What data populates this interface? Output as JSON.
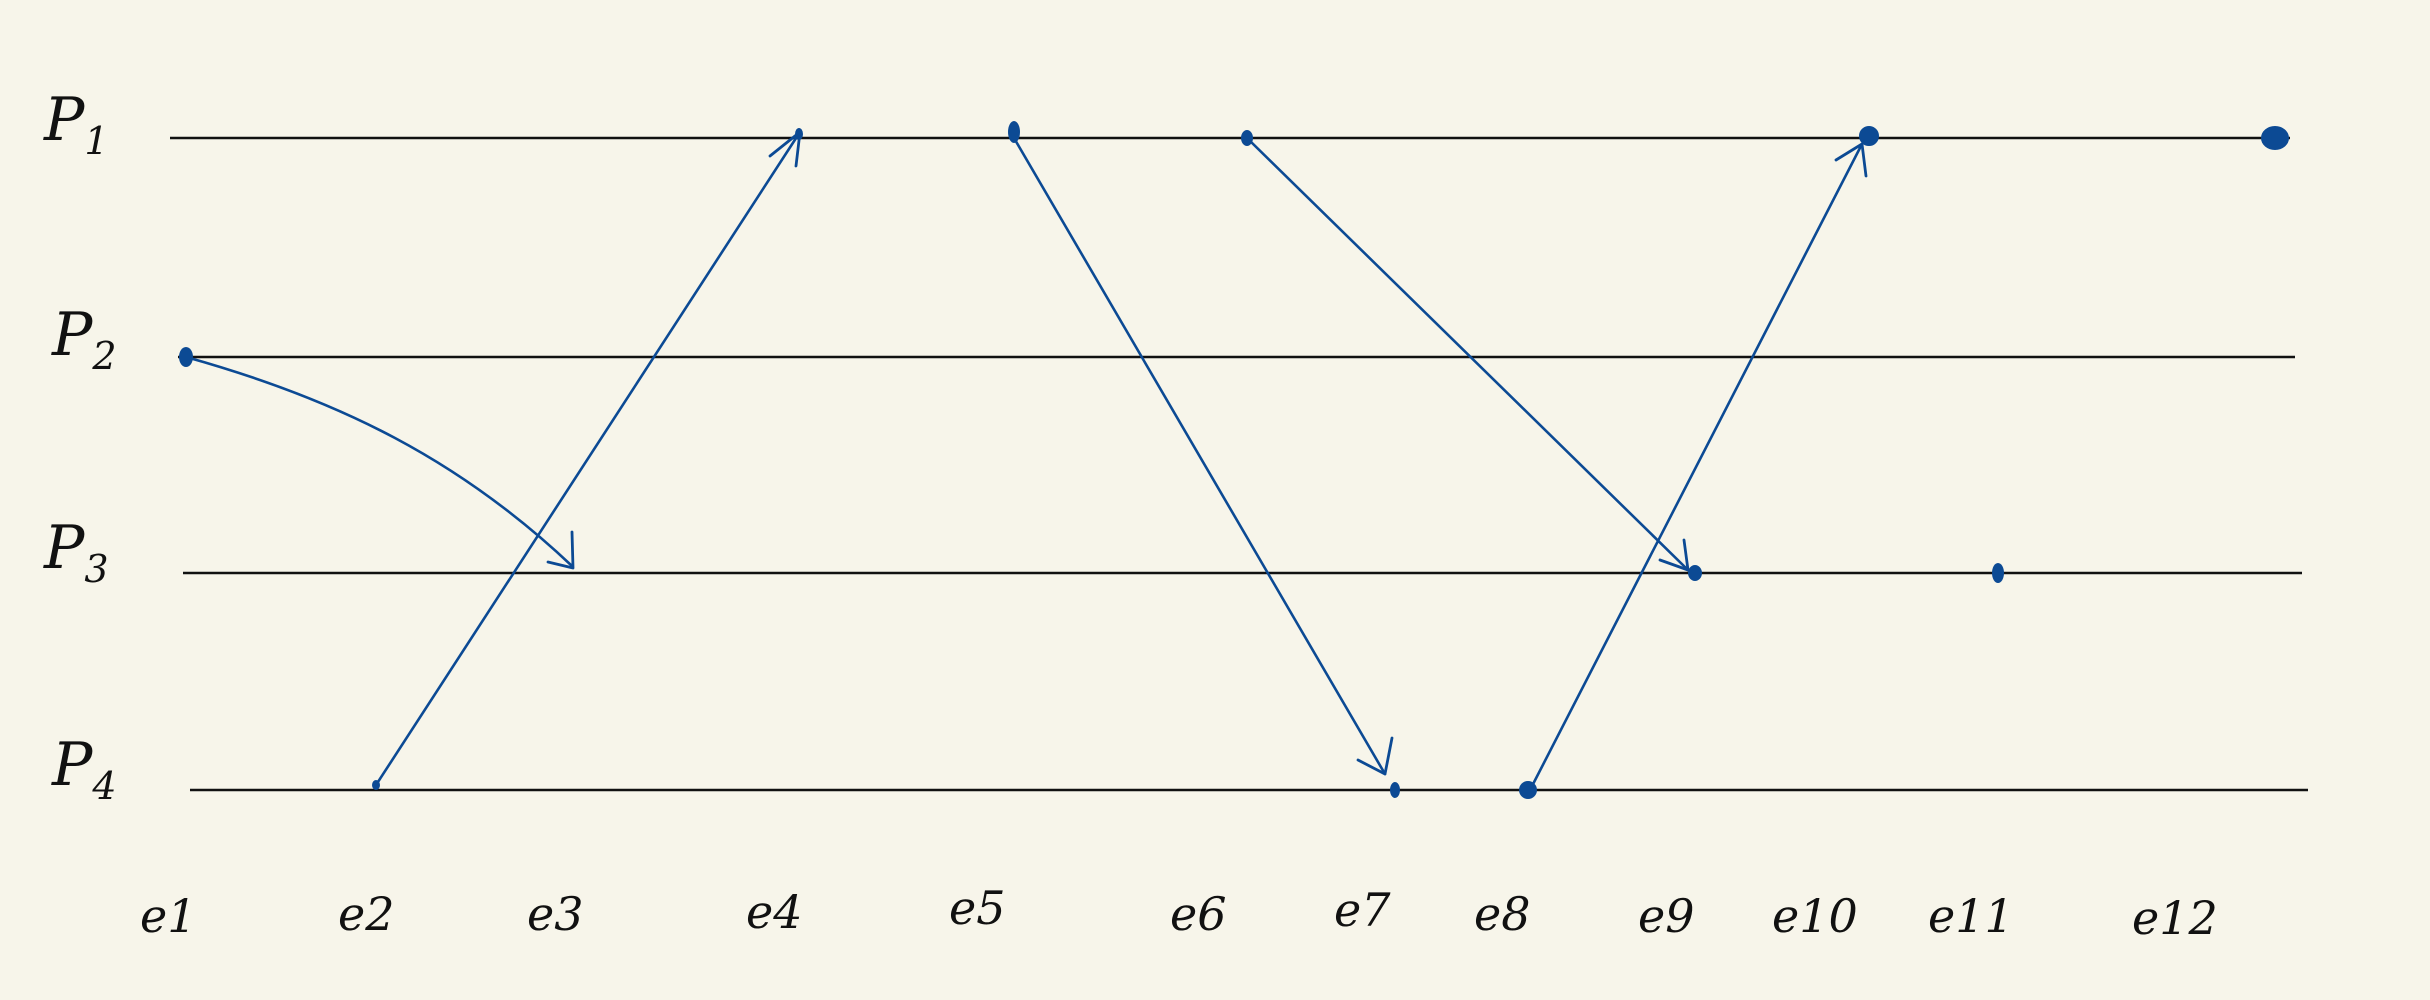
{
  "colors": {
    "background": "#f7f5ea",
    "timeline": "#111111",
    "message": "#0c4a94"
  },
  "processes": [
    {
      "id": "P1",
      "letter": "P",
      "sub": "1"
    },
    {
      "id": "P2",
      "letter": "P",
      "sub": "2"
    },
    {
      "id": "P3",
      "letter": "P",
      "sub": "3"
    },
    {
      "id": "P4",
      "letter": "P",
      "sub": "4"
    }
  ],
  "event_labels": [
    "e1",
    "e2",
    "e3",
    "e4",
    "e5",
    "e6",
    "e7",
    "e8",
    "e9",
    "e10",
    "e11",
    "e12"
  ],
  "events": [
    {
      "id": "e1",
      "process": "P2"
    },
    {
      "id": "e2",
      "process": "P4"
    },
    {
      "id": "e3",
      "process": "P3"
    },
    {
      "id": "e4",
      "process": "P1"
    },
    {
      "id": "e5",
      "process": "P1"
    },
    {
      "id": "e6",
      "process": "P1"
    },
    {
      "id": "e7",
      "process": "P4"
    },
    {
      "id": "e8",
      "process": "P4"
    },
    {
      "id": "e9",
      "process": "P3"
    },
    {
      "id": "e10",
      "process": "P1"
    },
    {
      "id": "e11",
      "process": "P3"
    },
    {
      "id": "e12",
      "process": "P1"
    }
  ],
  "messages": [
    {
      "from": "e1",
      "to": "e3"
    },
    {
      "from": "e2",
      "to": "e4"
    },
    {
      "from": "e5",
      "to": "e7"
    },
    {
      "from": "e6",
      "to": "e9"
    },
    {
      "from": "e8",
      "to": "e10"
    }
  ]
}
